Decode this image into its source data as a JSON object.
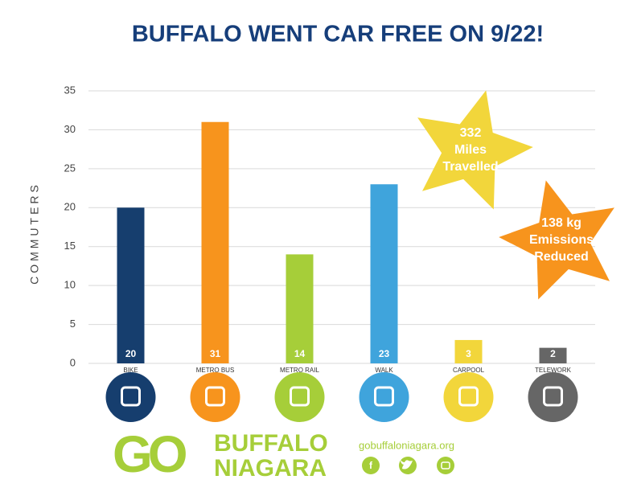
{
  "chart_data": {
    "type": "bar",
    "title": "BUFFALO WENT CAR FREE ON 9/22!",
    "y_label": "COMMUTERS",
    "categories": [
      "BIKE",
      "METRO BUS",
      "METRO RAIL",
      "WALK",
      "CARPOOL",
      "TELEWORK"
    ],
    "values": [
      20,
      31,
      14,
      23,
      3,
      2
    ],
    "colors": [
      "#163e6e",
      "#f7941d",
      "#a6ce39",
      "#3fa4dc",
      "#f2d63b",
      "#666666"
    ],
    "ylim": [
      0,
      35
    ],
    "yticks": [
      0,
      5,
      10,
      15,
      20,
      25,
      30,
      35
    ],
    "grid": true,
    "annotations": [
      {
        "lines": [
          "332",
          "Miles",
          "Travelled"
        ],
        "color": "#f2d63b"
      },
      {
        "lines": [
          "138 kg",
          "Emissions",
          "Reduced"
        ],
        "color": "#f7941d"
      }
    ]
  },
  "footer": {
    "logo_go": "GO",
    "logo_line1": "BUFFALO",
    "logo_line2": "NIAGARA",
    "website": "gobuffaloniagara.org"
  }
}
